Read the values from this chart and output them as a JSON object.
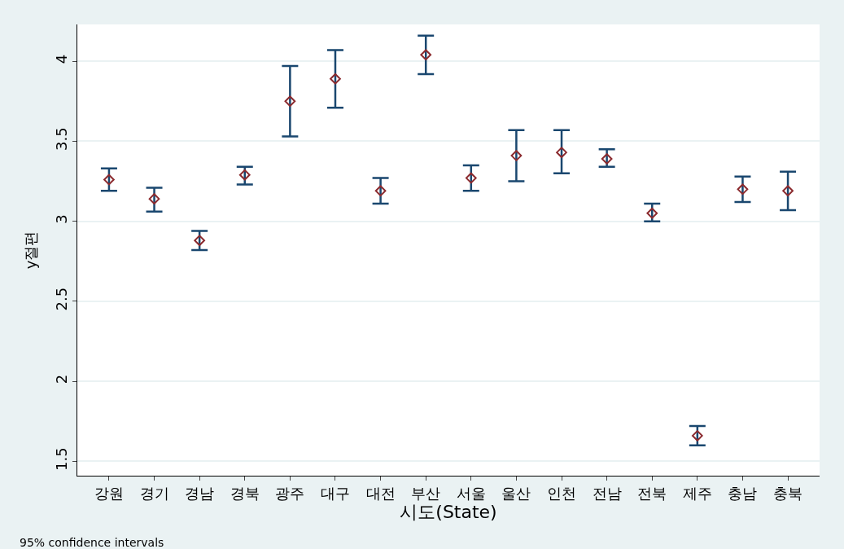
{
  "chart_data": {
    "type": "scatter",
    "xlabel": "시도(State)",
    "ylabel": "y절편",
    "categories": [
      "강원",
      "경기",
      "경남",
      "경북",
      "광주",
      "대구",
      "대전",
      "부산",
      "서울",
      "울산",
      "인천",
      "전남",
      "전북",
      "제주",
      "충남",
      "충북"
    ],
    "values": [
      3.26,
      3.14,
      2.88,
      3.29,
      3.75,
      3.89,
      3.19,
      4.04,
      3.27,
      3.41,
      3.43,
      3.39,
      3.05,
      1.66,
      3.2,
      3.19
    ],
    "errors": [
      [
        3.19,
        3.33
      ],
      [
        3.06,
        3.21
      ],
      [
        2.82,
        2.94
      ],
      [
        3.23,
        3.34
      ],
      [
        3.53,
        3.97
      ],
      [
        3.71,
        4.07
      ],
      [
        3.11,
        3.27
      ],
      [
        3.92,
        4.16
      ],
      [
        3.19,
        3.35
      ],
      [
        3.25,
        3.57
      ],
      [
        3.3,
        3.57
      ],
      [
        3.34,
        3.45
      ],
      [
        3.0,
        3.11
      ],
      [
        1.6,
        1.72
      ],
      [
        3.12,
        3.28
      ],
      [
        3.07,
        3.31
      ]
    ],
    "color": "#8b2a2e",
    "marker": "diamond",
    "ylim": [
      1.41,
      4.23
    ],
    "yticks": [
      1.5,
      2,
      2.5,
      3,
      3.5,
      4
    ],
    "grid": "y",
    "annotations": [
      "95% confidence intervals"
    ]
  }
}
